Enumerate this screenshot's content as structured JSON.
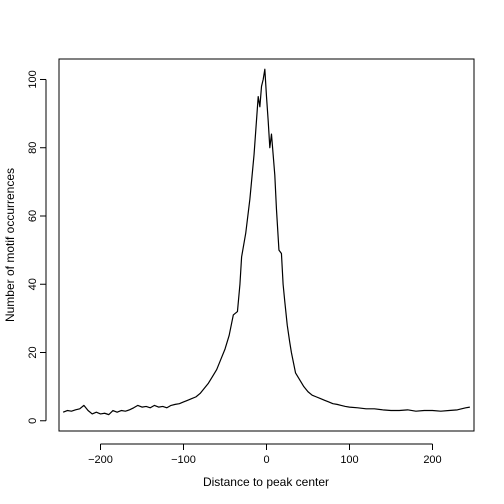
{
  "chart_data": {
    "type": "line",
    "title": "",
    "xlabel": "Distance to peak center",
    "ylabel": "Number of motif occurrences",
    "xlim": [
      -250,
      250
    ],
    "ylim": [
      -3,
      106
    ],
    "xticks": [
      -200,
      -100,
      0,
      100,
      200
    ],
    "yticks": [
      0,
      20,
      40,
      60,
      80,
      100
    ],
    "grid": false,
    "legend": "none",
    "line_color": "#000000",
    "series": [
      {
        "x": [
          -245,
          -240,
          -235,
          -230,
          -225,
          -220,
          -215,
          -210,
          -205,
          -200,
          -195,
          -190,
          -185,
          -180,
          -175,
          -170,
          -165,
          -160,
          -155,
          -150,
          -145,
          -140,
          -135,
          -130,
          -125,
          -120,
          -115,
          -110,
          -105,
          -100,
          -95,
          -90,
          -85,
          -80,
          -75,
          -70,
          -65,
          -60,
          -55,
          -50,
          -45,
          -40,
          -35,
          -32,
          -30,
          -25,
          -20,
          -15,
          -10,
          -8,
          -6,
          -4,
          -2,
          0,
          2,
          4,
          6,
          8,
          10,
          12,
          15,
          18,
          20,
          22,
          25,
          28,
          30,
          35,
          40,
          45,
          50,
          55,
          60,
          65,
          70,
          75,
          80,
          85,
          90,
          95,
          100,
          110,
          120,
          130,
          140,
          150,
          160,
          170,
          180,
          190,
          200,
          210,
          220,
          230,
          235,
          240,
          245
        ],
        "values": [
          2.5,
          3,
          2.8,
          3.2,
          3.5,
          4.5,
          3,
          2,
          2.5,
          2,
          2.2,
          1.8,
          3,
          2.5,
          3,
          2.8,
          3.2,
          3.8,
          4.5,
          4,
          4.2,
          3.8,
          4.5,
          4,
          4.2,
          3.8,
          4.5,
          4.8,
          5,
          5.5,
          6,
          6.5,
          7,
          8,
          9.5,
          11,
          13,
          15,
          18,
          21,
          25,
          31,
          32,
          40,
          48,
          55,
          65,
          78,
          95,
          92,
          98,
          100,
          103,
          95,
          88,
          80,
          84,
          78,
          72,
          62,
          50,
          49,
          40,
          35,
          28,
          23,
          20,
          14,
          12,
          10,
          8.5,
          7.5,
          7,
          6.5,
          6,
          5.5,
          5,
          4.8,
          4.5,
          4.2,
          4,
          3.8,
          3.5,
          3.5,
          3.2,
          3,
          3,
          3.2,
          2.8,
          3,
          3,
          2.8,
          3,
          3.2,
          3.5,
          3.8,
          4
        ]
      }
    ]
  }
}
